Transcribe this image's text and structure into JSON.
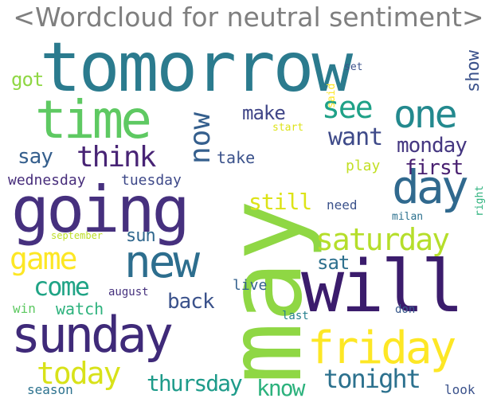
{
  "title": "<Wordcloud for neutral sentiment>",
  "words": [
    {
      "text": "tomorrow",
      "color": "#2b7b8e"
    },
    {
      "text": "may",
      "color": "#8fd744"
    },
    {
      "text": "going",
      "color": "#46307e"
    },
    {
      "text": "will",
      "color": "#3b1c6c"
    },
    {
      "text": "time",
      "color": "#5ec962"
    },
    {
      "text": "day",
      "color": "#30698e"
    },
    {
      "text": "sunday",
      "color": "#3f2a79"
    },
    {
      "text": "friday",
      "color": "#fde725"
    },
    {
      "text": "new",
      "color": "#2d6e8e"
    },
    {
      "text": "one",
      "color": "#23898e"
    },
    {
      "text": "saturday",
      "color": "#b5de2b"
    },
    {
      "text": "game",
      "color": "#fde725"
    },
    {
      "text": "see",
      "color": "#1fa187"
    },
    {
      "text": "think",
      "color": "#482475"
    },
    {
      "text": "now",
      "color": "#355f8d"
    },
    {
      "text": "today",
      "color": "#d8e219"
    },
    {
      "text": "tonight",
      "color": "#2c718e"
    },
    {
      "text": "want",
      "color": "#3e4a89"
    },
    {
      "text": "monday",
      "color": "#453781"
    },
    {
      "text": "come",
      "color": "#20a486"
    },
    {
      "text": "say",
      "color": "#355f8d"
    },
    {
      "text": "first",
      "color": "#481f70"
    },
    {
      "text": "make",
      "color": "#404688"
    },
    {
      "text": "still",
      "color": "#dde318"
    },
    {
      "text": "thursday",
      "color": "#1e9b8a"
    },
    {
      "text": "know",
      "color": "#2db27d"
    },
    {
      "text": "back",
      "color": "#3b528b"
    },
    {
      "text": "sat",
      "color": "#2d708e"
    },
    {
      "text": "got",
      "color": "#8fd744"
    },
    {
      "text": "sun",
      "color": "#31688e"
    },
    {
      "text": "show",
      "color": "#3b528b"
    },
    {
      "text": "watch",
      "color": "#2db27d"
    },
    {
      "text": "take",
      "color": "#3b528b"
    },
    {
      "text": "play",
      "color": "#c2df23"
    },
    {
      "text": "wednesday",
      "color": "#472d7b"
    },
    {
      "text": "tuesday",
      "color": "#3e4989"
    },
    {
      "text": "need",
      "color": "#3b528b"
    },
    {
      "text": "live",
      "color": "#34618d"
    },
    {
      "text": "win",
      "color": "#5ec962"
    },
    {
      "text": "season",
      "color": "#2c728e"
    },
    {
      "text": "look",
      "color": "#3b528b"
    },
    {
      "text": "august",
      "color": "#46327e"
    },
    {
      "text": "last",
      "color": "#27808e"
    },
    {
      "text": "don",
      "color": "#38598c"
    },
    {
      "text": "milan",
      "color": "#2c718e"
    },
    {
      "text": "right",
      "color": "#2db27d"
    },
    {
      "text": "september",
      "color": "#bddf26"
    },
    {
      "text": "said",
      "color": "#fde725"
    },
    {
      "text": "start",
      "color": "#dde318"
    },
    {
      "text": "set",
      "color": "#3b528b"
    }
  ]
}
